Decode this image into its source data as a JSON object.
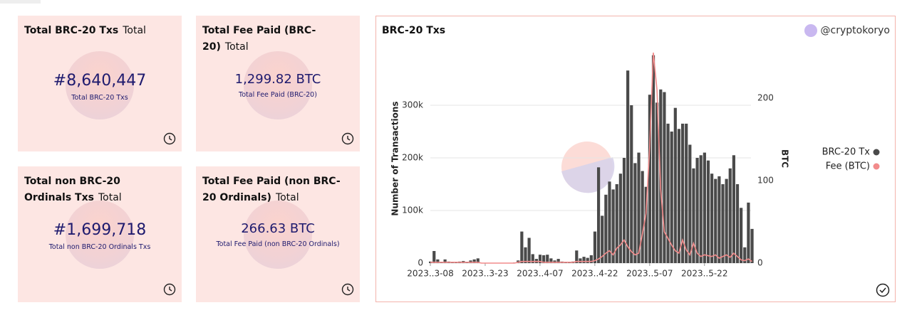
{
  "cards": [
    {
      "title": "Total BRC-20 Txs",
      "subtitle": "Total",
      "value": "#8,640,447",
      "caption": "Total BRC-20 Txs"
    },
    {
      "title": "Total Fee Paid (BRC-20)",
      "subtitle": "Total",
      "value": "1,299.82 BTC",
      "caption": "Total Fee Paid (BRC-20)"
    },
    {
      "title": "Total non BRC-20 Ordinals Txs",
      "subtitle": "Total",
      "value": "#1,699,718",
      "caption": "Total non BRC-20 Ordinals Txs"
    },
    {
      "title": "Total Fee Paid (non BRC-20 Ordinals)",
      "subtitle": "Total",
      "value": "266.63 BTC",
      "caption": "Total Fee Paid (non BRC-20 Ordinals)"
    }
  ],
  "chart_data": {
    "type": "bar-line",
    "title": "BRC-20 Txs",
    "attribution": "@cryptokoryo",
    "y_label": "Number of Transactions",
    "y2_label": "BTC",
    "x": [
      "2023-03-08",
      "2023-03-09",
      "2023-03-10",
      "2023-03-11",
      "2023-03-12",
      "2023-03-13",
      "2023-03-14",
      "2023-03-15",
      "2023-03-16",
      "2023-03-17",
      "2023-03-18",
      "2023-03-19",
      "2023-03-20",
      "2023-03-21",
      "2023-03-22",
      "2023-03-23",
      "2023-03-24",
      "2023-03-25",
      "2023-03-26",
      "2023-03-27",
      "2023-03-28",
      "2023-03-29",
      "2023-03-30",
      "2023-03-31",
      "2023-04-01",
      "2023-04-02",
      "2023-04-03",
      "2023-04-04",
      "2023-04-05",
      "2023-04-06",
      "2023-04-07",
      "2023-04-08",
      "2023-04-09",
      "2023-04-10",
      "2023-04-11",
      "2023-04-12",
      "2023-04-13",
      "2023-04-14",
      "2023-04-15",
      "2023-04-16",
      "2023-04-17",
      "2023-04-18",
      "2023-04-19",
      "2023-04-20",
      "2023-04-21",
      "2023-04-22",
      "2023-04-23",
      "2023-04-24",
      "2023-04-25",
      "2023-04-26",
      "2023-04-27",
      "2023-04-28",
      "2023-04-29",
      "2023-04-30",
      "2023-05-01",
      "2023-05-02",
      "2023-05-03",
      "2023-05-04",
      "2023-05-05",
      "2023-05-06",
      "2023-05-07",
      "2023-05-08",
      "2023-05-09",
      "2023-05-10",
      "2023-05-11",
      "2023-05-12",
      "2023-05-13",
      "2023-05-14",
      "2023-05-15",
      "2023-05-16",
      "2023-05-17",
      "2023-05-18",
      "2023-05-19",
      "2023-05-20",
      "2023-05-21",
      "2023-05-22",
      "2023-05-23",
      "2023-05-24",
      "2023-05-25",
      "2023-05-26",
      "2023-05-27",
      "2023-05-28",
      "2023-05-29",
      "2023-05-30",
      "2023-05-31",
      "2023-06-01",
      "2023-06-02",
      "2023-06-03",
      "2023-06-04"
    ],
    "series": [
      {
        "name": "BRC-20 Tx",
        "color": "#4a4a4a",
        "values": [
          3000,
          23000,
          7000,
          2000,
          7000,
          3000,
          2000,
          1000,
          3000,
          4000,
          2000,
          5000,
          7000,
          9000,
          0,
          0,
          0,
          0,
          0,
          0,
          0,
          0,
          0,
          1000,
          5000,
          60000,
          30000,
          48000,
          17000,
          8000,
          16000,
          15000,
          16000,
          9000,
          5000,
          8000,
          3000,
          2000,
          1000,
          3000,
          24000,
          9000,
          12000,
          10000,
          15000,
          60000,
          182000,
          90000,
          130000,
          155000,
          140000,
          150000,
          170000,
          200000,
          366000,
          300000,
          190000,
          210000,
          175000,
          145000,
          320000,
          395000,
          305000,
          330000,
          325000,
          265000,
          250000,
          295000,
          255000,
          265000,
          265000,
          225000,
          180000,
          200000,
          205000,
          210000,
          195000,
          170000,
          160000,
          165000,
          150000,
          160000,
          180000,
          205000,
          150000,
          105000,
          30000,
          115000,
          65000
        ]
      },
      {
        "name": "Fee (BTC)",
        "color": "#f28b8b",
        "axis": "y2",
        "values": [
          1,
          1,
          1,
          1,
          1,
          1,
          1,
          1,
          1,
          1,
          1,
          1,
          1,
          1,
          0,
          0,
          0,
          0,
          0,
          0,
          0,
          0,
          0,
          0,
          1,
          2,
          2,
          2,
          2,
          2,
          2,
          1,
          1,
          1,
          1,
          1,
          1,
          1,
          1,
          1,
          2,
          2,
          2,
          2,
          2,
          3,
          5,
          8,
          12,
          15,
          10,
          18,
          22,
          28,
          20,
          14,
          10,
          12,
          35,
          60,
          140,
          255,
          210,
          90,
          38,
          30,
          22,
          15,
          12,
          28,
          16,
          10,
          24,
          12,
          8,
          10,
          9,
          8,
          10,
          6,
          8,
          10,
          7,
          12,
          8,
          4,
          3,
          5,
          2
        ]
      }
    ],
    "ylim": [
      0,
      400000
    ],
    "yticks": [
      0,
      {
        "value": 100000,
        "label": "100k"
      },
      {
        "value": 200000,
        "label": "200k"
      },
      {
        "value": 300000,
        "label": "300k"
      }
    ],
    "y2lim": [
      0,
      255
    ],
    "y2ticks": [
      0,
      100,
      200
    ],
    "xticks": [
      {
        "value": "2023-03-08",
        "label": "2023..3-08"
      },
      {
        "value": "2023-03-23",
        "label": "2023..3-23"
      },
      {
        "value": "2023-04-07",
        "label": "2023..4-07"
      },
      {
        "value": "2023-04-22",
        "label": "2023..4-22"
      },
      {
        "value": "2023-05-07",
        "label": "2023..5-07"
      },
      {
        "value": "2023-05-22",
        "label": "2023..5-22"
      }
    ],
    "grid": true
  }
}
